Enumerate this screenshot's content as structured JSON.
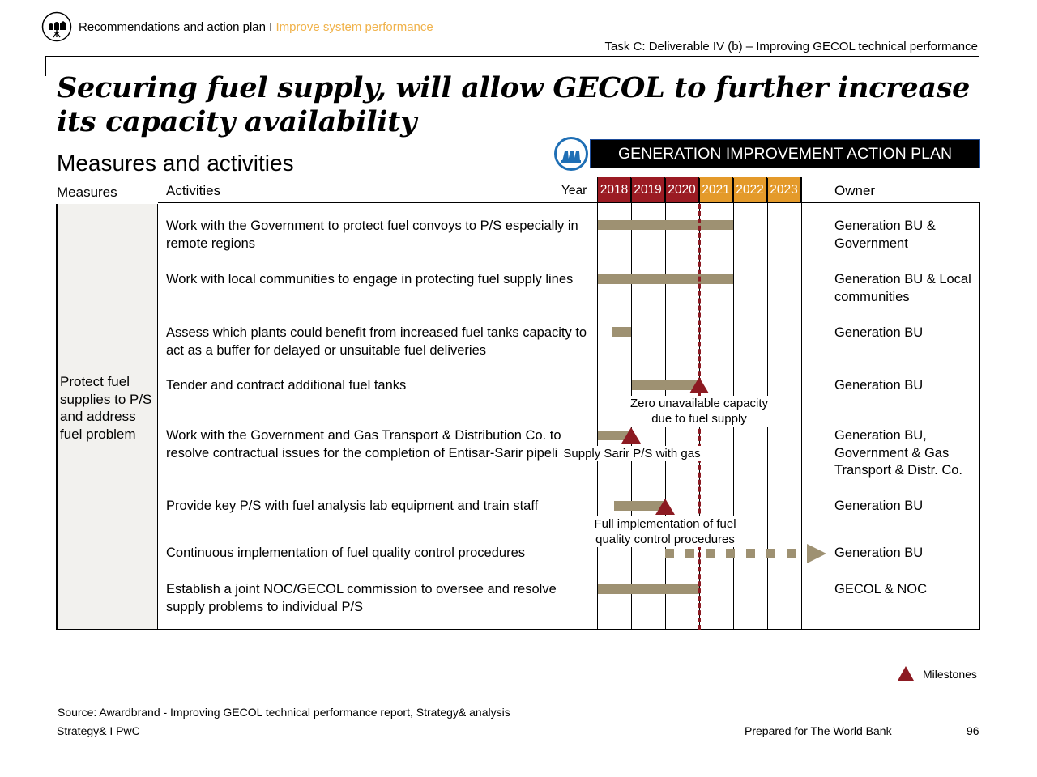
{
  "header": {
    "section": "Recommendations and action plan",
    "separator": " I ",
    "subsection": "Improve system performance",
    "task": "Task C: Deliverable IV (b) – Improving GECOL technical performance"
  },
  "title": "Securing fuel supply, will allow GECOL to further increase its capacity availability",
  "subtitle": "Measures and activities",
  "banner": "GENERATION IMPROVEMENT ACTION PLAN",
  "columns": {
    "measures": "Measures",
    "activities": "Activities",
    "year": "Year",
    "owner": "Owner"
  },
  "years": [
    "2018",
    "2019",
    "2020",
    "2021",
    "2022",
    "2023"
  ],
  "measure": "Protect fuel supplies to P/S and address fuel problem",
  "activities": [
    {
      "text": "Work with the Government to protect fuel convoys to P/S especially in remote regions",
      "owner": "Generation BU & Government"
    },
    {
      "text": "Work with local communities to engage in protecting fuel supply lines",
      "owner": "Generation BU & Local communities"
    },
    {
      "text": "Assess which plants could benefit from increased fuel tanks capacity to act as a buffer for delayed or unsuitable fuel deliveries",
      "owner": "Generation BU"
    },
    {
      "text": "Tender and contract additional fuel tanks",
      "owner": "Generation BU"
    },
    {
      "text": "Work with the Government and Gas Transport & Distribution Co. to resolve contractual issues for the completion of Entisar-Sarir pipeline",
      "owner": "Generation BU, Government & Gas Transport & Distr. Co."
    },
    {
      "text": "Provide key P/S with fuel analysis lab equipment and train staff",
      "owner": "Generation BU"
    },
    {
      "text": "Continuous implementation of fuel quality control procedures",
      "owner": "Generation BU"
    },
    {
      "text": "Establish a joint NOC/GECOL commission to oversee and resolve supply problems to individual P/S",
      "owner": "GECOL & NOC"
    }
  ],
  "milestone_labels": {
    "tanks": "Zero unavailable capacity due to fuel supply",
    "gas": "Supply Sarir P/S with gas",
    "quality": "Full implementation of fuel quality control procedures"
  },
  "legend": {
    "milestones": "Milestones"
  },
  "source": "Source: Awardbrand - Improving GECOL technical performance report, Strategy& analysis",
  "footer": {
    "left": "Strategy& I PwC",
    "center": "Prepared for The World Bank",
    "page": "96"
  },
  "colors": {
    "accent": "#f0b24a",
    "year_past": "#9b1b23",
    "year_future": "#e49a2a",
    "bar": "#9e9172",
    "milestone": "#8c1a22"
  }
}
